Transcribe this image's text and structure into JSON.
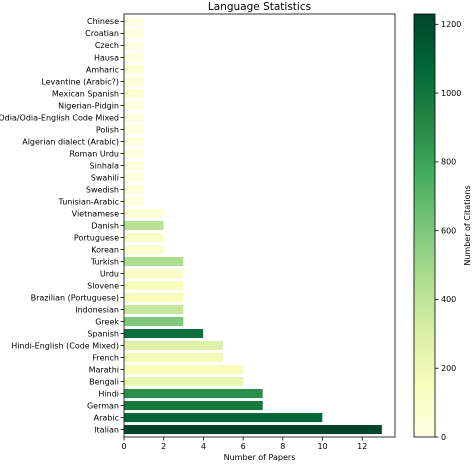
{
  "chart_data": {
    "type": "bar",
    "orientation": "horizontal",
    "title": "Language Statistics",
    "xlabel": "Number of Papers",
    "ylabel": "",
    "xlim": [
      0,
      13.65
    ],
    "x_ticks": [
      0,
      2,
      4,
      6,
      8,
      10,
      12
    ],
    "grid": false,
    "categories": [
      "Chinese",
      "Croatian",
      "Czech",
      "Hausa",
      "Amharic",
      "Levantine (Arabic?)",
      "Mexican Spanish",
      "Nigerian-Pidgin",
      "Odia/Odia-English Code Mixed",
      "Polish",
      "Algerian dialect (Arabic)",
      "Roman Urdu",
      "Sinhala",
      "Swahili",
      "Swedish",
      "Tunisian-Arabic",
      "Vietnamese",
      "Danish",
      "Portuguese",
      "Korean",
      "Turkish",
      "Urdu",
      "Slovene",
      "Brazilian (Portuguese)",
      "Indonesian",
      "Greek",
      "Spanish",
      "Hindi-English (Code Mixed)",
      "French",
      "Marathi",
      "Bengali",
      "Hindi",
      "German",
      "Arabic",
      "Italian"
    ],
    "values": [
      1,
      1,
      1,
      1,
      1,
      1,
      1,
      1,
      1,
      1,
      1,
      1,
      1,
      1,
      1,
      1,
      2,
      2,
      2,
      2,
      3,
      3,
      3,
      3,
      3,
      3,
      4,
      5,
      5,
      6,
      6,
      7,
      7,
      10,
      13
    ],
    "citations": [
      20,
      25,
      20,
      25,
      60,
      60,
      70,
      35,
      25,
      30,
      35,
      25,
      30,
      40,
      40,
      35,
      60,
      420,
      100,
      80,
      460,
      100,
      140,
      150,
      380,
      600,
      1030,
      280,
      180,
      150,
      230,
      880,
      980,
      1080,
      1230
    ],
    "colorbar": {
      "label": "Number of Citations",
      "colormap": "YlGn",
      "range": [
        0,
        1230
      ],
      "ticks": [
        0,
        200,
        400,
        600,
        800,
        1000,
        1200
      ]
    },
    "bar_edge_color": "#ffffff"
  }
}
